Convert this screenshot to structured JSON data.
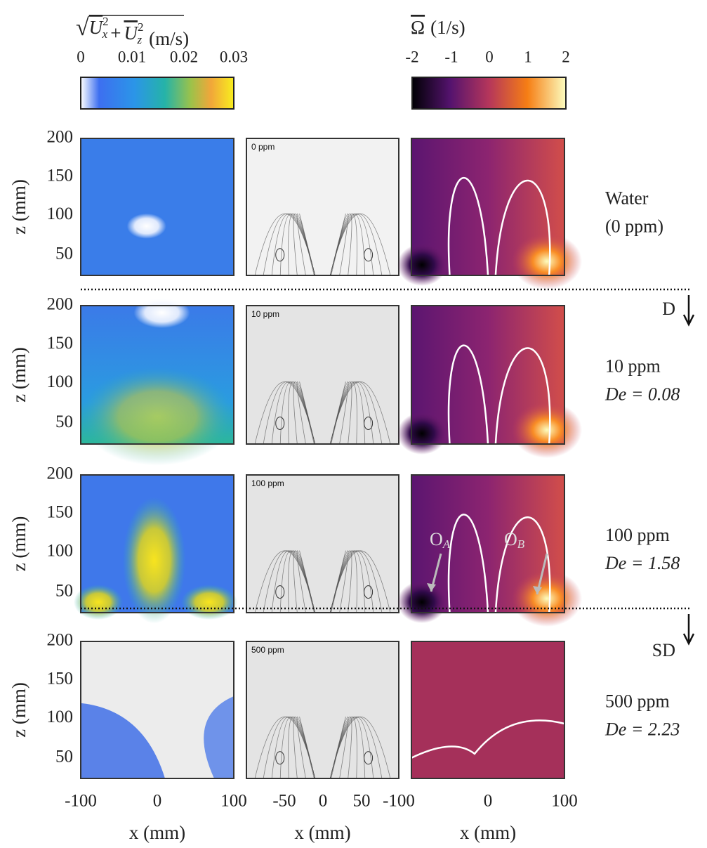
{
  "colorbars": [
    {
      "radical": "√",
      "terms": [
        {
          "symbol": "U",
          "sub": "x",
          "sup": "2"
        },
        {
          "symbol": "U",
          "sub": "z",
          "sup": "2"
        }
      ],
      "operator": "+",
      "unit": "(m/s)",
      "ticks": [
        "0",
        "0.01",
        "0.02",
        "0.03"
      ]
    },
    {
      "symbol": "Ω",
      "unit": "(1/s)",
      "ticks": [
        "-2",
        "-1",
        "0",
        "1",
        "2"
      ]
    }
  ],
  "z_axis": {
    "label": "z (mm)",
    "ticks": [
      "200",
      "150",
      "100",
      "50"
    ]
  },
  "x_axes": [
    {
      "label": "x (mm)",
      "ticks": [
        "-100",
        "0",
        "100"
      ]
    },
    {
      "label": "x (mm)",
      "ticks": [
        "-50",
        "0",
        "50"
      ]
    },
    {
      "label": "x (mm)",
      "ticks": [
        "-100",
        "0",
        "100"
      ]
    }
  ],
  "rows": [
    {
      "panel_tag": "0 ppm",
      "condition": "Water",
      "detail": "(0 ppm)"
    },
    {
      "panel_tag": "10 ppm",
      "condition": "10 ppm",
      "detail": "De = 0.08"
    },
    {
      "panel_tag": "100 ppm",
      "condition": "100 ppm",
      "detail": "De = 1.58"
    },
    {
      "panel_tag": "500 ppm",
      "condition": "500 ppm",
      "detail": "De = 2.23"
    }
  ],
  "regimes": [
    "D",
    "SD"
  ],
  "annotations": [
    {
      "letter": "O",
      "sub": "A"
    },
    {
      "letter": "O",
      "sub": "B"
    }
  ]
}
